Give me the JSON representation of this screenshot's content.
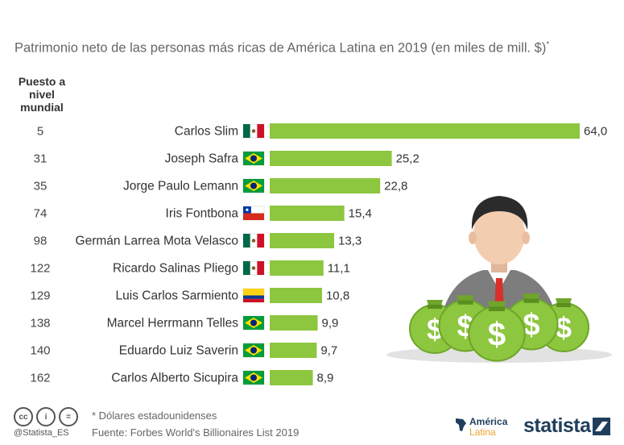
{
  "title": "Patrimonio neto de las personas más ricas de América Latina en 2019 (en miles de mill. $)",
  "title_mark": "*",
  "rank_header": "Puesto a nivel mundial",
  "chart_data": {
    "type": "bar",
    "orientation": "horizontal",
    "title": "Patrimonio neto de las personas más ricas de América Latina en 2019 (en miles de mill. $)*",
    "categories": [
      "Carlos Slim",
      "Joseph Safra",
      "Jorge Paulo Lemann",
      "Iris Fontbona",
      "Germán Larrea Mota Velasco",
      "Ricardo Salinas Pliego",
      "Luis Carlos Sarmiento",
      "Marcel Herrmann Telles",
      "Eduardo Luiz Saverin",
      "Carlos Alberto Sicupira"
    ],
    "ranks": [
      "5",
      "31",
      "35",
      "74",
      "98",
      "122",
      "129",
      "138",
      "140",
      "162"
    ],
    "countries": [
      "mexico",
      "brazil",
      "brazil",
      "chile",
      "mexico",
      "mexico",
      "colombia",
      "brazil",
      "brazil",
      "brazil"
    ],
    "values": [
      64.0,
      25.2,
      22.8,
      15.4,
      13.3,
      11.1,
      10.8,
      9.9,
      9.7,
      8.9
    ],
    "value_labels": [
      "64,0",
      "25,2",
      "22,8",
      "15,4",
      "13,3",
      "11,1",
      "10,8",
      "9,9",
      "9,7",
      "8,9"
    ],
    "xlim": [
      0,
      64
    ],
    "grid": false,
    "bar_color": "#8dc63f"
  },
  "footer": {
    "note": "* Dólares estadounidenses",
    "source": "Fuente: Forbes World's Billionaires List 2019",
    "handle": "@Statista_ES",
    "cc": [
      "cc",
      "i",
      "="
    ],
    "partner_line1": "América",
    "partner_line2": "Latina",
    "brand": "statista"
  }
}
